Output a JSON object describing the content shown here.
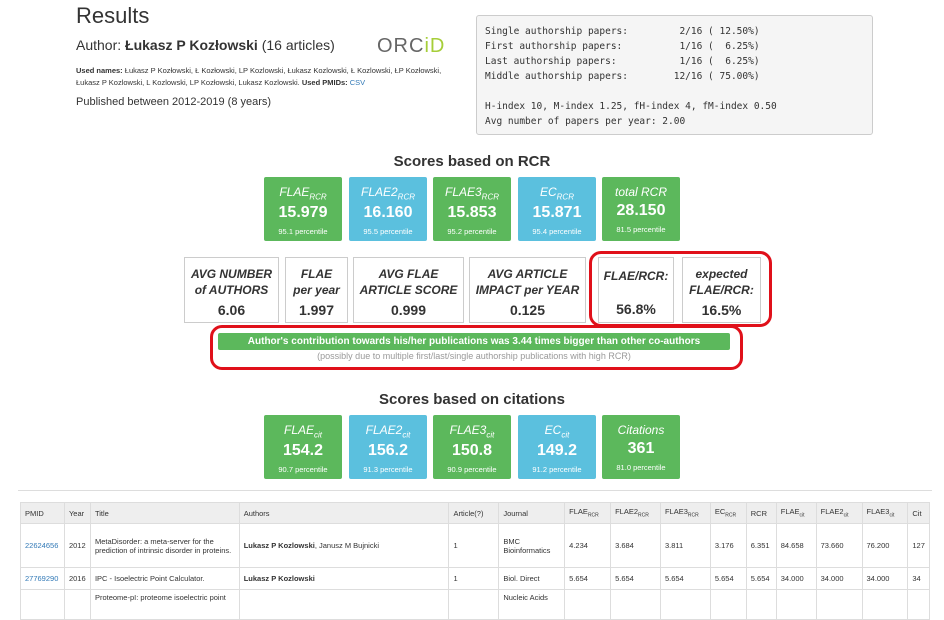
{
  "header": {
    "title": "Results",
    "author_prefix": "Author:",
    "author_name": "Łukasz P Kozłowski",
    "article_count": "(16 articles)",
    "orcid_logo": "ORCID",
    "used_names_label": "Used names:",
    "used_names": "Łukasz P Kozłowski, Ł Kozłowski, LP Kozlowski, Łukasz Kozlowski, Ł Kozlowski, ŁP Kozłowski, Łukasz P Kozlowski, L Kozlowski, LP Kozłowski, Lukasz Kozlowski.",
    "used_pmids_label": "Used PMIDs:",
    "used_pmids_link": "CSV",
    "published": "Published between 2012-2019 (8 years)"
  },
  "summary": {
    "lines": [
      "Single authorship papers:         2/16 ( 12.50%)",
      "First authorship papers:          1/16 (  6.25%)",
      "Last authorship papers:           1/16 (  6.25%)",
      "Middle authorship papers:        12/16 ( 75.00%)",
      "",
      "H-index 10, M-index 1.25, fH-index 4, fM-index 0.50",
      "Avg number of papers per year: 2.00"
    ]
  },
  "rcr_section": {
    "heading": "Scores based on RCR",
    "boxes": [
      {
        "name": "FLAE",
        "sub": "RCR",
        "value": "15.979",
        "percentile": "95.1 percentile",
        "color": "#5cb85c"
      },
      {
        "name": "FLAE2",
        "sub": "RCR",
        "value": "16.160",
        "percentile": "95.5 percentile",
        "color": "#5bc0de"
      },
      {
        "name": "FLAE3",
        "sub": "RCR",
        "value": "15.853",
        "percentile": "95.2 percentile",
        "color": "#5cb85c"
      },
      {
        "name": "EC",
        "sub": "RCR",
        "value": "15.871",
        "percentile": "95.4 percentile",
        "color": "#5bc0de"
      },
      {
        "name": "total RCR",
        "sub": "",
        "value": "28.150",
        "percentile": "81.5 percentile",
        "color": "#5cb85c"
      }
    ],
    "stats": [
      {
        "name1": "AVG NUMBER",
        "name2": "of AUTHORS",
        "value": "6.06"
      },
      {
        "name1": "FLAE",
        "name2": "per year",
        "value": "1.997"
      },
      {
        "name1": "AVG FLAE",
        "name2": "ARTICLE SCORE",
        "value": "0.999"
      },
      {
        "name1": "AVG ARTICLE",
        "name2": "IMPACT per YEAR",
        "value": "0.125"
      },
      {
        "name1": "FLAE/RCR:",
        "name2": "",
        "value": "56.8%"
      },
      {
        "name1": "expected",
        "name2": "FLAE/RCR:",
        "value": "16.5%"
      }
    ],
    "contribution": "Author's contribution towards his/her publications was 3.44 times bigger than other co-authors",
    "contribution_note": "(possibly due to multiple first/last/single authorship publications with high RCR)"
  },
  "cit_section": {
    "heading": "Scores based on citations",
    "boxes": [
      {
        "name": "FLAE",
        "sub": "cit",
        "value": "154.2",
        "percentile": "90.7 percentile",
        "color": "#5cb85c"
      },
      {
        "name": "FLAE2",
        "sub": "cit",
        "value": "156.2",
        "percentile": "91.3 percentile",
        "color": "#5bc0de"
      },
      {
        "name": "FLAE3",
        "sub": "cit",
        "value": "150.8",
        "percentile": "90.9 percentile",
        "color": "#5cb85c"
      },
      {
        "name": "EC",
        "sub": "cit",
        "value": "149.2",
        "percentile": "91.2 percentile",
        "color": "#5bc0de"
      },
      {
        "name": "Citations",
        "sub": "",
        "value": "361",
        "percentile": "81.0 percentile",
        "color": "#5cb85c"
      }
    ]
  },
  "table": {
    "headers": [
      "PMID",
      "Year",
      "Title",
      "Authors",
      "Article(?)",
      "Journal",
      "FLAE",
      "FLAE2",
      "FLAE3",
      "EC",
      "RCR",
      "FLAE",
      "FLAE2",
      "FLAE3",
      "Cit"
    ],
    "header_subs": [
      "",
      "",
      "",
      "",
      "",
      "",
      "RCR",
      "RCR",
      "RCR",
      "RCR",
      "",
      "cit",
      "cit",
      "cit",
      ""
    ],
    "rows": [
      {
        "pmid": "22624656",
        "year": "2012",
        "title": "MetaDisorder: a meta-server for the prediction of intrinsic disorder in proteins.",
        "authors_bold": "Lukasz P Kozlowski",
        "authors_rest": ", Janusz M Bujnicki",
        "article": "1",
        "journal": "BMC Bioinformatics",
        "v1": "4.234",
        "v2": "3.684",
        "v3": "3.811",
        "v4": "3.176",
        "v5": "6.351",
        "v6": "84.658",
        "v7": "73.660",
        "v8": "76.200",
        "v9": "127"
      },
      {
        "pmid": "27769290",
        "year": "2016",
        "title": "IPC - Isoelectric Point Calculator.",
        "authors_bold": "Lukasz P Kozlowski",
        "authors_rest": "",
        "article": "1",
        "journal": "Biol. Direct",
        "v1": "5.654",
        "v2": "5.654",
        "v3": "5.654",
        "v4": "5.654",
        "v5": "5.654",
        "v6": "34.000",
        "v7": "34.000",
        "v8": "34.000",
        "v9": "34"
      },
      {
        "pmid": "",
        "year": "",
        "title": "Proteome-pI: proteome isoelectric point",
        "authors_bold": "",
        "authors_rest": "",
        "article": "",
        "journal": "Nucleic Acids",
        "v1": "",
        "v2": "",
        "v3": "",
        "v4": "",
        "v5": "",
        "v6": "",
        "v7": "",
        "v8": "",
        "v9": ""
      }
    ]
  }
}
